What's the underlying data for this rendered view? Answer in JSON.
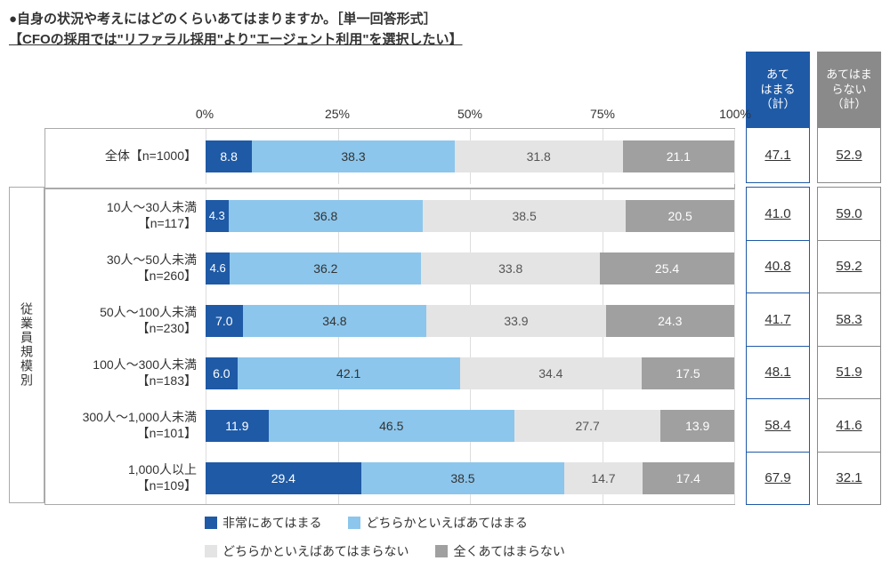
{
  "title": "●自身の状況や考えにはどのくらいあてはまりますか。［単一回答形式］",
  "subtitle": "【CFOの採用では\"リファラル採用\"より\"エージェント利用\"を選択したい】",
  "group_label": "従業員規模別",
  "axis": {
    "ticks": [
      "0%",
      "25%",
      "50%",
      "75%",
      "100%"
    ],
    "positions": [
      0,
      25,
      50,
      75,
      100
    ]
  },
  "legend": [
    "非常にあてはまる",
    "どちらかといえばあてはまる",
    "どちらかといえばあてはまらない",
    "全くあてはまらない"
  ],
  "colors": {
    "c1": "#1f5aa6",
    "c2": "#8cc6ec",
    "c3": "#e4e4e4",
    "c4": "#a0a0a0",
    "pos_border": "#1f5aa6",
    "neg_border": "#8a8a8a"
  },
  "score_headers": {
    "positive": "あて\nはまる\n（計）",
    "negative": "あてはま\nらない\n（計）"
  },
  "rows": [
    {
      "label": "全体【n=1000】",
      "values": [
        8.8,
        38.3,
        31.8,
        21.1
      ],
      "pos": "47.1",
      "neg": "52.9"
    },
    {
      "label": "10人～30人未満",
      "sub": "【n=117】",
      "values": [
        4.3,
        36.8,
        38.5,
        20.5
      ],
      "pos": "41.0",
      "neg": "59.0"
    },
    {
      "label": "30人～50人未満",
      "sub": "【n=260】",
      "values": [
        4.6,
        36.2,
        33.8,
        25.4
      ],
      "pos": "40.8",
      "neg": "59.2"
    },
    {
      "label": "50人～100人未満",
      "sub": "【n=230】",
      "values": [
        7.0,
        34.8,
        33.9,
        24.3
      ],
      "pos": "41.7",
      "neg": "58.3"
    },
    {
      "label": "100人～300人未満",
      "sub": "【n=183】",
      "values": [
        6.0,
        42.1,
        34.4,
        17.5
      ],
      "pos": "48.1",
      "neg": "51.9"
    },
    {
      "label": "300人～1,000人未満",
      "sub": "【n=101】",
      "values": [
        11.9,
        46.5,
        27.7,
        13.9
      ],
      "pos": "58.4",
      "neg": "41.6"
    },
    {
      "label": "1,000人以上",
      "sub": "【n=109】",
      "values": [
        29.4,
        38.5,
        14.7,
        17.4
      ],
      "pos": "67.9",
      "neg": "32.1"
    }
  ]
}
